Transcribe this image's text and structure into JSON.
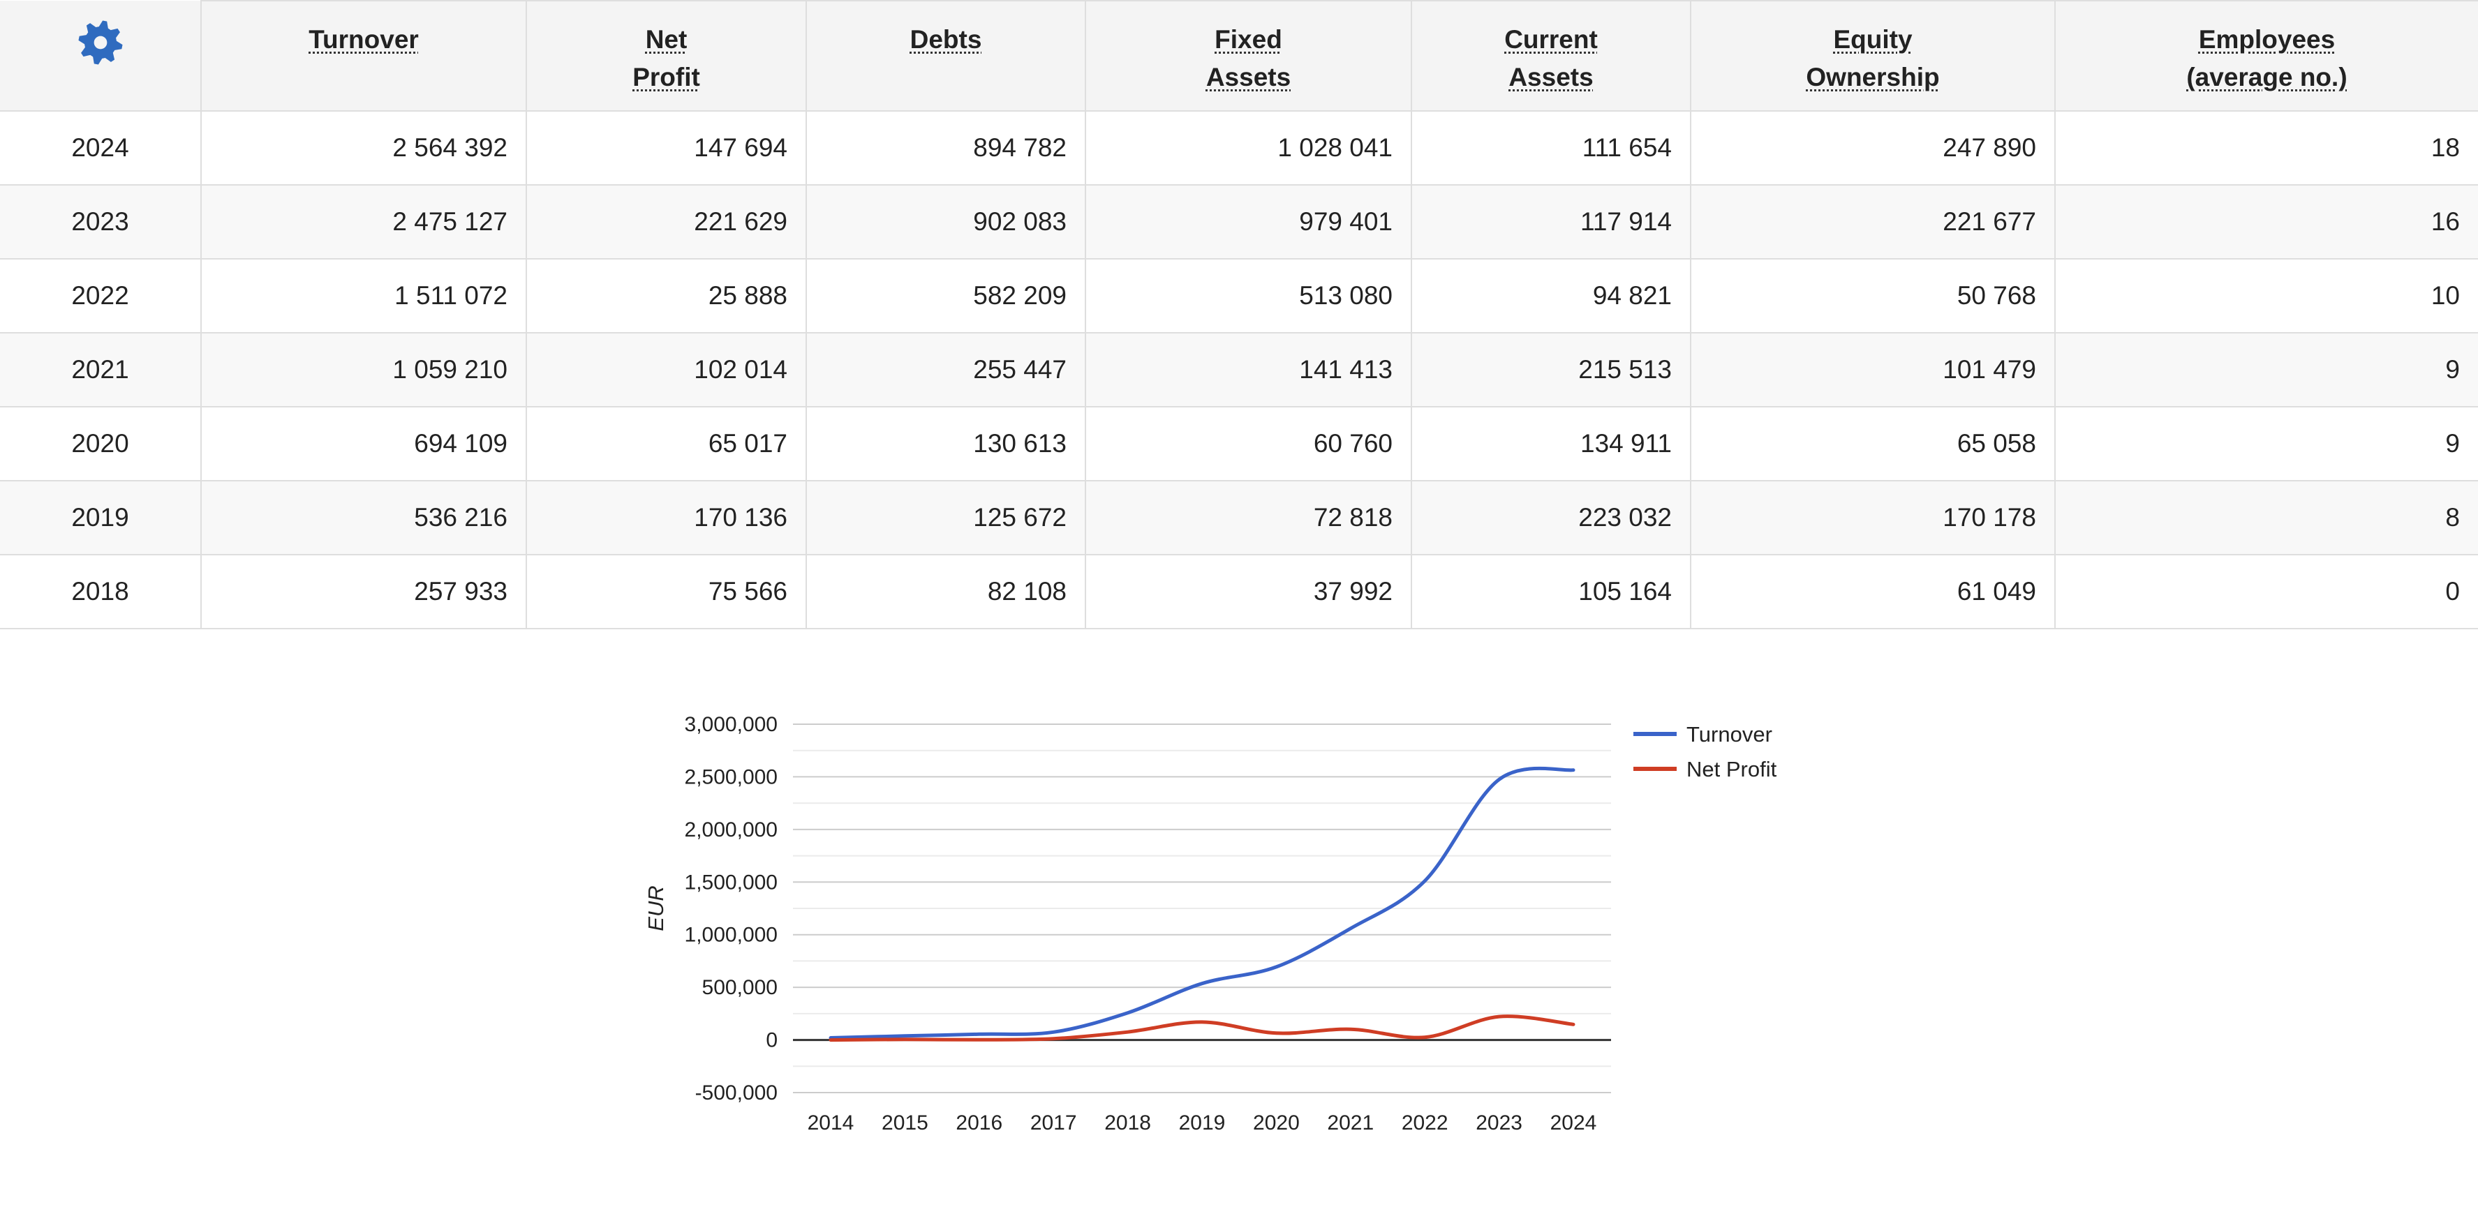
{
  "table": {
    "settings_icon": "gear-icon",
    "headers": [
      "Turnover",
      "Net\nProfit",
      "Debts",
      "Fixed\nAssets",
      "Current\nAssets",
      "Equity\nOwnership",
      "Employees\n(average no.)"
    ],
    "rows": [
      {
        "year": "2024",
        "cells": [
          "2 564 392",
          "147 694",
          "894 782",
          "1 028 041",
          "111 654",
          "247 890",
          "18"
        ]
      },
      {
        "year": "2023",
        "cells": [
          "2 475 127",
          "221 629",
          "902 083",
          "979 401",
          "117 914",
          "221 677",
          "16"
        ]
      },
      {
        "year": "2022",
        "cells": [
          "1 511 072",
          "25 888",
          "582 209",
          "513 080",
          "94 821",
          "50 768",
          "10"
        ]
      },
      {
        "year": "2021",
        "cells": [
          "1 059 210",
          "102 014",
          "255 447",
          "141 413",
          "215 513",
          "101 479",
          "9"
        ]
      },
      {
        "year": "2020",
        "cells": [
          "694 109",
          "65 017",
          "130 613",
          "60 760",
          "134 911",
          "65 058",
          "9"
        ]
      },
      {
        "year": "2019",
        "cells": [
          "536 216",
          "170 136",
          "125 672",
          "72 818",
          "223 032",
          "170 178",
          "8"
        ]
      },
      {
        "year": "2018",
        "cells": [
          "257 933",
          "75 566",
          "82 108",
          "37 992",
          "105 164",
          "61 049",
          "0"
        ]
      }
    ]
  },
  "colors": {
    "settings_icon": "#2f6bbf",
    "turnover": "#3a63c9",
    "net_profit": "#cf3d24",
    "gridline": "#cccccc",
    "minor_gridline": "#ebebeb",
    "zero_line": "#333333"
  },
  "chart_data": {
    "type": "line",
    "ylabel": "EUR",
    "xlabel": "",
    "categories": [
      "2014",
      "2015",
      "2016",
      "2017",
      "2018",
      "2019",
      "2020",
      "2021",
      "2022",
      "2023",
      "2024"
    ],
    "series": [
      {
        "name": "Turnover",
        "values": [
          20000,
          38000,
          55000,
          75000,
          257933,
          536216,
          694109,
          1059210,
          1511072,
          2475127,
          2564392
        ]
      },
      {
        "name": "Net Profit",
        "values": [
          0,
          5000,
          2000,
          12000,
          75566,
          170136,
          65017,
          102014,
          25888,
          221629,
          147694
        ]
      }
    ],
    "ylim": [
      -500000,
      3000000
    ],
    "yticks": [
      -500000,
      0,
      500000,
      1000000,
      1500000,
      2000000,
      2500000,
      3000000
    ],
    "ytick_labels": [
      "-500,000",
      "0",
      "500,000",
      "1,000,000",
      "1,500,000",
      "2,000,000",
      "2,500,000",
      "3,000,000"
    ],
    "grid": true,
    "legend_position": "right"
  }
}
